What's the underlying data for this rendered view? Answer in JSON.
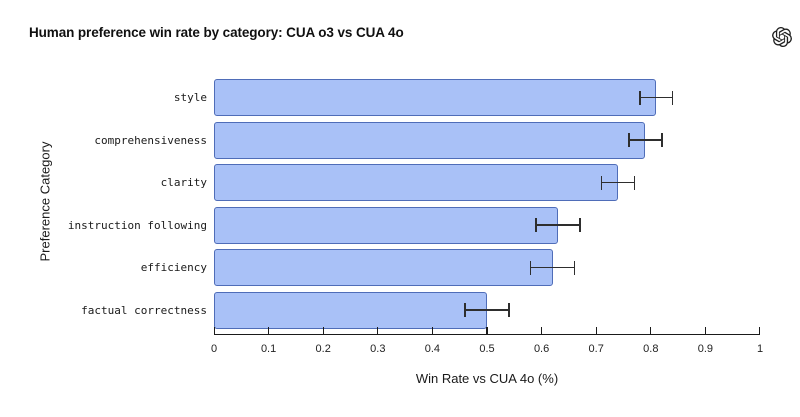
{
  "page": {
    "background": "#ffffff"
  },
  "header": {
    "logo_icon": "openai-logo",
    "logo_color": "#202020"
  },
  "chart_data": {
    "type": "bar",
    "orientation": "horizontal",
    "title": "Human preference win rate by category: CUA o3 vs CUA 4o",
    "xlabel": "Win Rate vs CUA 4o (%)",
    "ylabel": "Preference Category",
    "categories": [
      "style",
      "comprehensiveness",
      "clarity",
      "instruction following",
      "efficiency",
      "factual correctness"
    ],
    "values": [
      0.81,
      0.79,
      0.74,
      0.63,
      0.62,
      0.5
    ],
    "errors": [
      0.03,
      0.03,
      0.03,
      0.04,
      0.04,
      0.04
    ],
    "xlim": [
      0,
      1
    ],
    "xticks": [
      0,
      0.1,
      0.2,
      0.3,
      0.4,
      0.5,
      0.6,
      0.7,
      0.8,
      0.9,
      1
    ],
    "xtick_labels": [
      "0",
      "0.1",
      "0.2",
      "0.3",
      "0.4",
      "0.5",
      "0.6",
      "0.7",
      "0.8",
      "0.9",
      "1"
    ],
    "grid": false,
    "legend": null,
    "bar_fill": "#a9c1f7",
    "bar_edge": "#4f6db8",
    "error_color": "#2e2e2e",
    "tick_direction": "in"
  }
}
